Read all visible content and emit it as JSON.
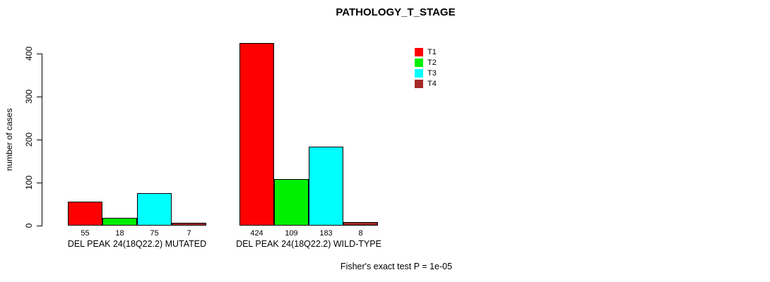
{
  "title": "PATHOLOGY_T_STAGE",
  "footer_note": "Fisher's exact test P = 1e-05",
  "colors": {
    "t1": "#ff0000",
    "t2": "#00ee00",
    "t3": "#00ffff",
    "t4": "#a52a2a",
    "axis": "#000000"
  },
  "chart_data": {
    "type": "bar",
    "title": "PATHOLOGY_T_STAGE",
    "xlabel": "",
    "ylabel": "number of cases",
    "ylim": [
      0,
      400
    ],
    "yticks": [
      0,
      100,
      200,
      300,
      400
    ],
    "grid": false,
    "legend_position": "top-right-inside",
    "categories": [
      "DEL PEAK 24(18Q22.2) MUTATED",
      "DEL PEAK 24(18Q22.2) WILD-TYPE"
    ],
    "series": [
      {
        "name": "T1",
        "color": "#ff0000",
        "values": [
          55,
          424
        ]
      },
      {
        "name": "T2",
        "color": "#00ee00",
        "values": [
          18,
          109
        ]
      },
      {
        "name": "T3",
        "color": "#00ffff",
        "values": [
          75,
          183
        ]
      },
      {
        "name": "T4",
        "color": "#a52a2a",
        "values": [
          7,
          8
        ]
      }
    ],
    "bar_value_labels": [
      [
        55,
        18,
        75,
        7
      ],
      [
        424,
        109,
        183,
        8
      ]
    ],
    "annotation": "Fisher's exact test P = 1e-05"
  }
}
